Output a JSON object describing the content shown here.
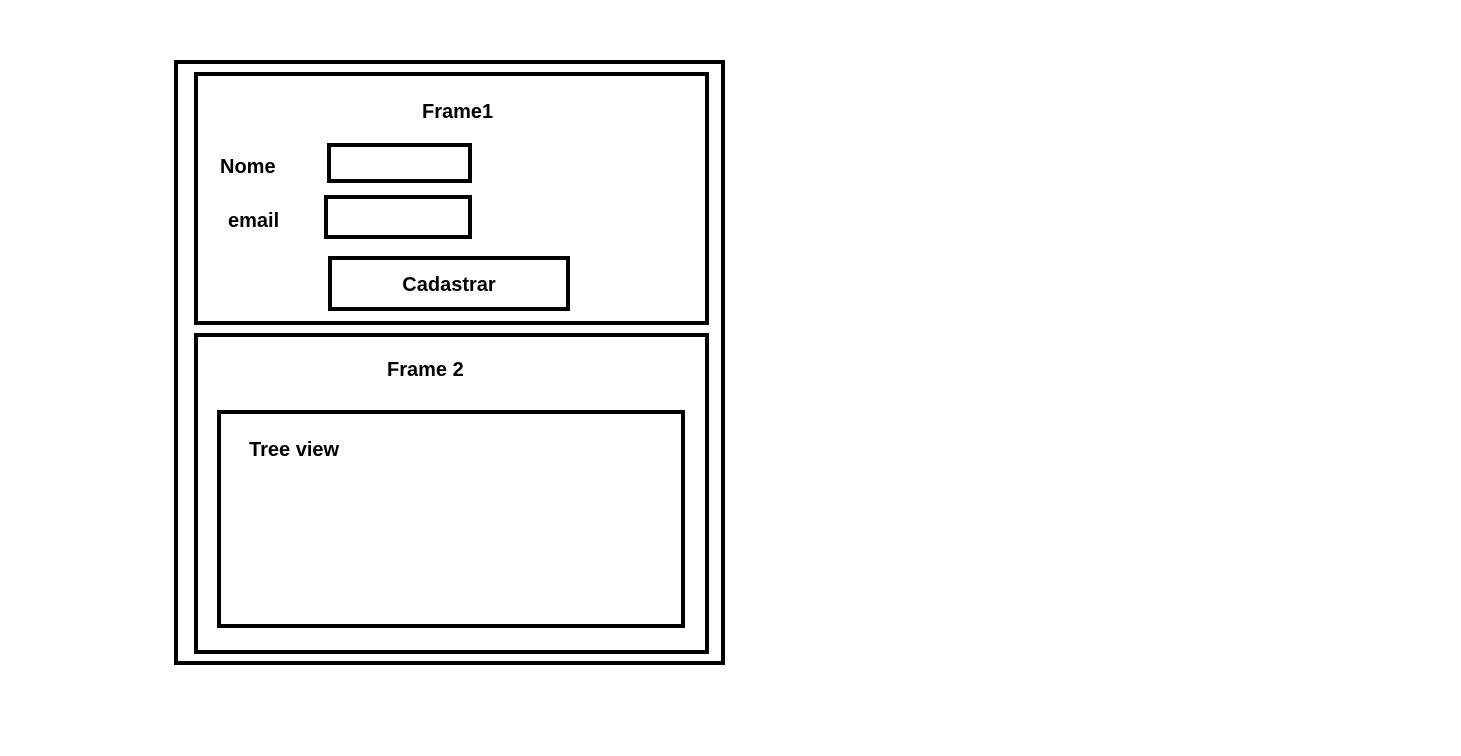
{
  "frame1": {
    "title": "Frame1",
    "nome_label": "Nome",
    "email_label": "email",
    "nome_value": "",
    "email_value": "",
    "button_label": "Cadastrar"
  },
  "frame2": {
    "title": "Frame 2",
    "treeview_label": "Tree view"
  }
}
